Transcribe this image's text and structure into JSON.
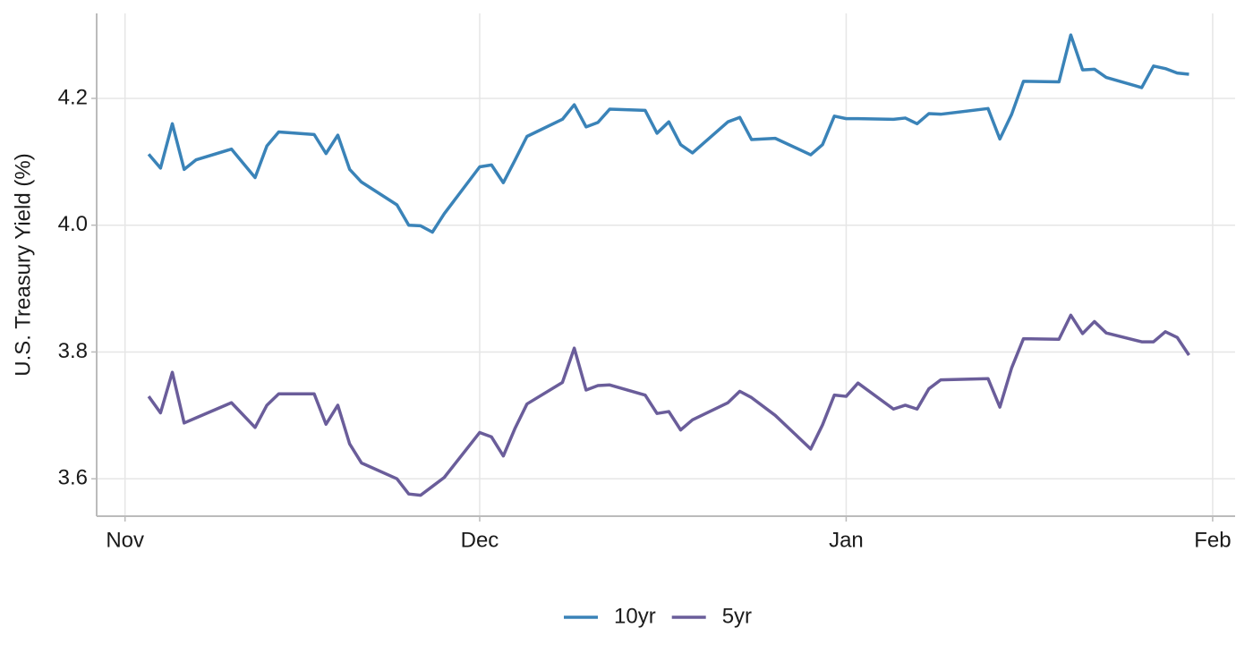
{
  "chart_data": {
    "type": "line",
    "y_label": "U.S. Treasury Yield (%)",
    "x": [
      2,
      3,
      4,
      5,
      6,
      9,
      11,
      12,
      13,
      16,
      17,
      18,
      19,
      20,
      23,
      24,
      25,
      26,
      27,
      30,
      31,
      32,
      33,
      34,
      37,
      38,
      39,
      40,
      41,
      44,
      45,
      46,
      47,
      48,
      51,
      52,
      53,
      55,
      58,
      59,
      60,
      61,
      62,
      65,
      66,
      67,
      68,
      69,
      73,
      74,
      75,
      76,
      79,
      80,
      81,
      82,
      83,
      86,
      87,
      88,
      89,
      90
    ],
    "series": [
      {
        "name": "10yr",
        "color": "#3a83b8",
        "values": [
          4.112,
          4.09,
          4.16,
          4.088,
          4.103,
          4.12,
          4.075,
          4.125,
          4.147,
          4.143,
          4.113,
          4.142,
          4.088,
          4.068,
          4.032,
          4.0,
          3.999,
          3.989,
          4.018,
          4.092,
          4.095,
          4.067,
          4.103,
          4.14,
          4.167,
          4.19,
          4.155,
          4.162,
          4.183,
          4.181,
          4.145,
          4.163,
          4.127,
          4.114,
          4.163,
          4.17,
          4.135,
          4.137,
          4.111,
          4.127,
          4.172,
          4.168,
          4.168,
          4.167,
          4.169,
          4.16,
          4.176,
          4.175,
          4.184,
          4.136,
          4.175,
          4.227,
          4.226,
          4.3,
          4.245,
          4.246,
          4.233,
          4.217,
          4.251,
          4.247,
          4.24,
          4.238
        ]
      },
      {
        "name": "5yr",
        "color": "#6a5d9a",
        "values": [
          3.73,
          3.704,
          3.768,
          3.688,
          3.696,
          3.72,
          3.681,
          3.716,
          3.734,
          3.734,
          3.686,
          3.716,
          3.655,
          3.625,
          3.6,
          3.576,
          3.574,
          3.588,
          3.602,
          3.673,
          3.666,
          3.636,
          3.68,
          3.718,
          3.752,
          3.806,
          3.74,
          3.747,
          3.748,
          3.732,
          3.703,
          3.706,
          3.677,
          3.693,
          3.72,
          3.738,
          3.728,
          3.7,
          3.647,
          3.685,
          3.732,
          3.73,
          3.751,
          3.71,
          3.716,
          3.71,
          3.742,
          3.756,
          3.758,
          3.713,
          3.775,
          3.821,
          3.82,
          3.858,
          3.829,
          3.848,
          3.83,
          3.816,
          3.816,
          3.832,
          3.823,
          3.795
        ]
      }
    ],
    "xlim": [
      -2.4,
      93.9
    ],
    "xticks": [
      {
        "value": 0,
        "label": "Nov"
      },
      {
        "value": 30,
        "label": "Dec"
      },
      {
        "value": 61,
        "label": "Jan"
      },
      {
        "value": 92,
        "label": "Feb"
      }
    ],
    "ylim": [
      3.541,
      4.334
    ],
    "yticks": [
      3.6,
      3.8,
      {
        "value": 4,
        "label": "4.0"
      },
      4.2
    ],
    "grid": true,
    "legend": "bottom"
  }
}
